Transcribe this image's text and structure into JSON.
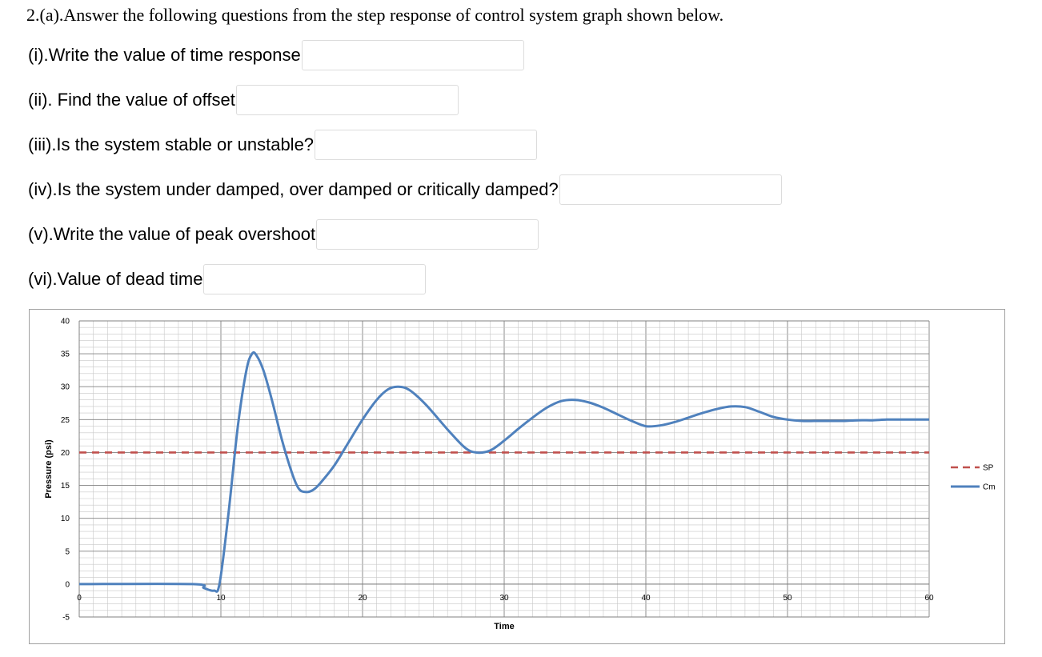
{
  "question": {
    "heading": "2.(a).Answer the following questions from the step response of control system graph shown below.",
    "items": [
      {
        "label": "(i).Write the value of  time response",
        "answer": ""
      },
      {
        "label": "(ii). Find the value of offset",
        "answer": ""
      },
      {
        "label": "(iii).Is the system stable or unstable?",
        "answer": ""
      },
      {
        "label": "(iv).Is the system under damped, over damped or  critically damped?",
        "answer": ""
      },
      {
        "label": "(v).Write the value of peak overshoot",
        "answer": ""
      },
      {
        "label": "(vi).Value of dead time",
        "answer": ""
      }
    ]
  },
  "chart_data": {
    "type": "line",
    "xlabel": "Time",
    "ylabel": "Pressure (psi)",
    "xlim": [
      0,
      60
    ],
    "ylim": [
      -5,
      40
    ],
    "xticks": [
      0,
      10,
      20,
      30,
      40,
      50,
      60
    ],
    "yticks": [
      40,
      35,
      30,
      25,
      20,
      15,
      10,
      5,
      0,
      -5
    ],
    "grid": true,
    "legend_position": "right",
    "series": [
      {
        "name": "SP",
        "style": "dashed",
        "color": "#c0504d",
        "x": [
          0,
          60
        ],
        "y": [
          20,
          20
        ]
      },
      {
        "name": "Cm",
        "style": "solid",
        "color": "#4f81bd",
        "x": [
          0,
          8,
          8.8,
          9.5,
          9.9,
          10.5,
          11.2,
          11.8,
          12.2,
          12.5,
          13,
          13.6,
          14.3,
          15,
          15.5,
          16,
          16.5,
          17,
          18,
          19,
          20,
          21,
          21.8,
          22.5,
          23.3,
          24.5,
          26,
          27.2,
          28,
          29,
          30,
          31,
          32,
          33,
          34,
          35,
          36,
          37,
          38,
          39,
          40,
          41,
          42,
          43,
          44,
          45,
          46,
          47,
          48,
          49,
          50,
          51,
          52,
          53,
          54,
          55,
          56,
          57,
          58,
          59,
          60
        ],
        "y": [
          0,
          0,
          -0.6,
          -1,
          0,
          10,
          24,
          32.5,
          35,
          34.8,
          32.5,
          28,
          22,
          17,
          14.5,
          14,
          14.3,
          15.3,
          18,
          21.5,
          25,
          28,
          29.6,
          30,
          29.5,
          27.2,
          23.5,
          20.8,
          20,
          20.3,
          21.8,
          23.6,
          25.3,
          26.8,
          27.8,
          28,
          27.6,
          26.8,
          25.8,
          24.8,
          24,
          24.1,
          24.6,
          25.3,
          26,
          26.6,
          27,
          26.9,
          26.2,
          25.4,
          25,
          24.8,
          24.8,
          24.8,
          24.8,
          24.9,
          24.9,
          25,
          25,
          25,
          25
        ]
      }
    ]
  }
}
